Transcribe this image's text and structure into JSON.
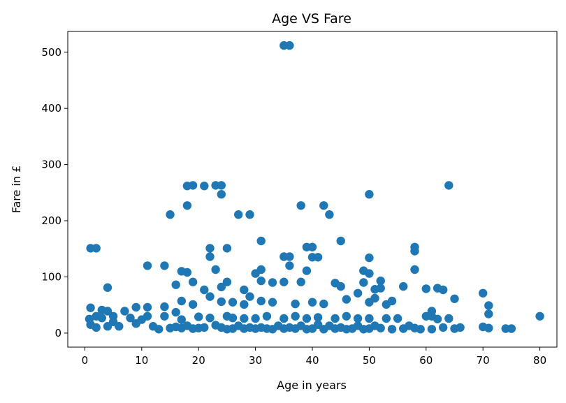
{
  "chart_data": {
    "type": "scatter",
    "title": "Age VS Fare",
    "xlabel": "Age in years",
    "ylabel": "Fare in £",
    "xlim": [
      -3,
      83
    ],
    "ylim": [
      -25,
      537
    ],
    "xticks": [
      0,
      10,
      20,
      30,
      40,
      50,
      60,
      70,
      80
    ],
    "yticks": [
      0,
      100,
      200,
      300,
      400,
      500
    ],
    "grid": false,
    "color": "#1f77b4",
    "series": [
      {
        "points": [
          [
            35,
            512
          ],
          [
            36,
            512
          ],
          [
            18,
            262
          ],
          [
            19,
            263
          ],
          [
            21,
            262
          ],
          [
            23,
            263
          ],
          [
            24,
            263
          ],
          [
            64,
            263
          ],
          [
            24,
            247
          ],
          [
            50,
            247
          ],
          [
            18,
            227
          ],
          [
            38,
            227
          ],
          [
            42,
            227
          ],
          [
            15,
            211
          ],
          [
            27,
            211
          ],
          [
            29,
            211
          ],
          [
            43,
            211
          ],
          [
            31,
            164
          ],
          [
            45,
            164
          ],
          [
            1,
            151
          ],
          [
            2,
            151
          ],
          [
            22,
            151
          ],
          [
            25,
            151
          ],
          [
            39,
            153
          ],
          [
            40,
            153
          ],
          [
            58,
            153
          ],
          [
            58,
            146
          ],
          [
            22,
            136
          ],
          [
            35,
            136
          ],
          [
            36,
            136
          ],
          [
            40,
            135
          ],
          [
            41,
            135
          ],
          [
            50,
            134
          ],
          [
            11,
            120
          ],
          [
            14,
            120
          ],
          [
            36,
            120
          ],
          [
            23,
            113
          ],
          [
            31,
            113
          ],
          [
            58,
            113
          ],
          [
            17,
            110
          ],
          [
            18,
            108
          ],
          [
            30,
            106
          ],
          [
            39,
            111
          ],
          [
            49,
            111
          ],
          [
            50,
            106
          ],
          [
            4,
            81
          ],
          [
            16,
            86
          ],
          [
            19,
            91
          ],
          [
            21,
            77
          ],
          [
            24,
            82
          ],
          [
            25,
            91
          ],
          [
            28,
            77
          ],
          [
            31,
            93
          ],
          [
            33,
            90
          ],
          [
            35,
            91
          ],
          [
            38,
            91
          ],
          [
            44,
            89
          ],
          [
            45,
            83
          ],
          [
            49,
            90
          ],
          [
            51,
            78
          ],
          [
            52,
            93
          ],
          [
            56,
            83
          ],
          [
            60,
            79
          ],
          [
            62,
            80
          ],
          [
            63,
            77
          ],
          [
            70,
            71
          ],
          [
            17,
            57
          ],
          [
            19,
            51
          ],
          [
            22,
            65
          ],
          [
            24,
            56
          ],
          [
            26,
            55
          ],
          [
            28,
            51
          ],
          [
            29,
            65
          ],
          [
            31,
            57
          ],
          [
            33,
            55
          ],
          [
            37,
            52
          ],
          [
            40,
            55
          ],
          [
            42,
            52
          ],
          [
            46,
            60
          ],
          [
            48,
            71
          ],
          [
            50,
            55
          ],
          [
            51,
            62
          ],
          [
            52,
            80
          ],
          [
            53,
            51
          ],
          [
            54,
            57
          ],
          [
            60,
            30
          ],
          [
            61,
            30
          ],
          [
            65,
            61
          ],
          [
            71,
            49
          ],
          [
            71,
            34
          ],
          [
            75,
            8
          ],
          [
            80,
            30
          ],
          [
            1,
            45
          ],
          [
            0.8,
            25
          ],
          [
            1,
            15
          ],
          [
            2,
            10
          ],
          [
            2,
            30
          ],
          [
            3,
            27
          ],
          [
            3,
            41
          ],
          [
            4,
            39
          ],
          [
            4,
            12
          ],
          [
            5,
            30
          ],
          [
            5,
            20
          ],
          [
            6,
            12
          ],
          [
            7,
            39
          ],
          [
            8,
            27
          ],
          [
            9,
            46
          ],
          [
            9,
            17
          ],
          [
            10,
            24
          ],
          [
            11,
            46
          ],
          [
            11,
            30
          ],
          [
            12,
            12
          ],
          [
            13,
            7
          ],
          [
            14,
            47
          ],
          [
            14,
            30
          ],
          [
            15,
            9
          ],
          [
            16,
            37
          ],
          [
            16,
            11
          ],
          [
            17,
            24
          ],
          [
            17,
            9
          ],
          [
            18,
            13
          ],
          [
            19,
            8
          ],
          [
            20,
            9
          ],
          [
            20,
            29
          ],
          [
            21,
            10
          ],
          [
            22,
            27
          ],
          [
            23,
            14
          ],
          [
            24,
            10
          ],
          [
            25,
            7
          ],
          [
            25,
            30
          ],
          [
            26,
            8
          ],
          [
            26,
            27
          ],
          [
            27,
            13
          ],
          [
            28,
            8
          ],
          [
            28,
            26
          ],
          [
            29,
            10
          ],
          [
            30,
            8
          ],
          [
            30,
            26
          ],
          [
            31,
            10
          ],
          [
            32,
            8
          ],
          [
            32,
            30
          ],
          [
            33,
            7
          ],
          [
            34,
            13
          ],
          [
            35,
            8
          ],
          [
            35,
            26
          ],
          [
            36,
            10
          ],
          [
            37,
            8
          ],
          [
            37,
            30
          ],
          [
            38,
            13
          ],
          [
            39,
            7
          ],
          [
            39,
            26
          ],
          [
            40,
            8
          ],
          [
            41,
            15
          ],
          [
            41,
            28
          ],
          [
            42,
            7
          ],
          [
            43,
            13
          ],
          [
            44,
            8
          ],
          [
            44,
            26
          ],
          [
            45,
            10
          ],
          [
            46,
            7
          ],
          [
            46,
            30
          ],
          [
            47,
            8
          ],
          [
            48,
            13
          ],
          [
            48,
            26
          ],
          [
            49,
            7
          ],
          [
            50,
            8
          ],
          [
            50,
            26
          ],
          [
            51,
            13
          ],
          [
            52,
            9
          ],
          [
            53,
            26
          ],
          [
            54,
            7
          ],
          [
            55,
            26
          ],
          [
            56,
            8
          ],
          [
            57,
            13
          ],
          [
            58,
            9
          ],
          [
            59,
            7
          ],
          [
            61,
            7
          ],
          [
            61,
            39
          ],
          [
            62,
            25
          ],
          [
            63,
            10
          ],
          [
            64,
            26
          ],
          [
            65,
            8
          ],
          [
            66,
            10
          ],
          [
            70,
            11
          ],
          [
            71,
            9
          ],
          [
            74,
            8
          ]
        ]
      }
    ]
  }
}
